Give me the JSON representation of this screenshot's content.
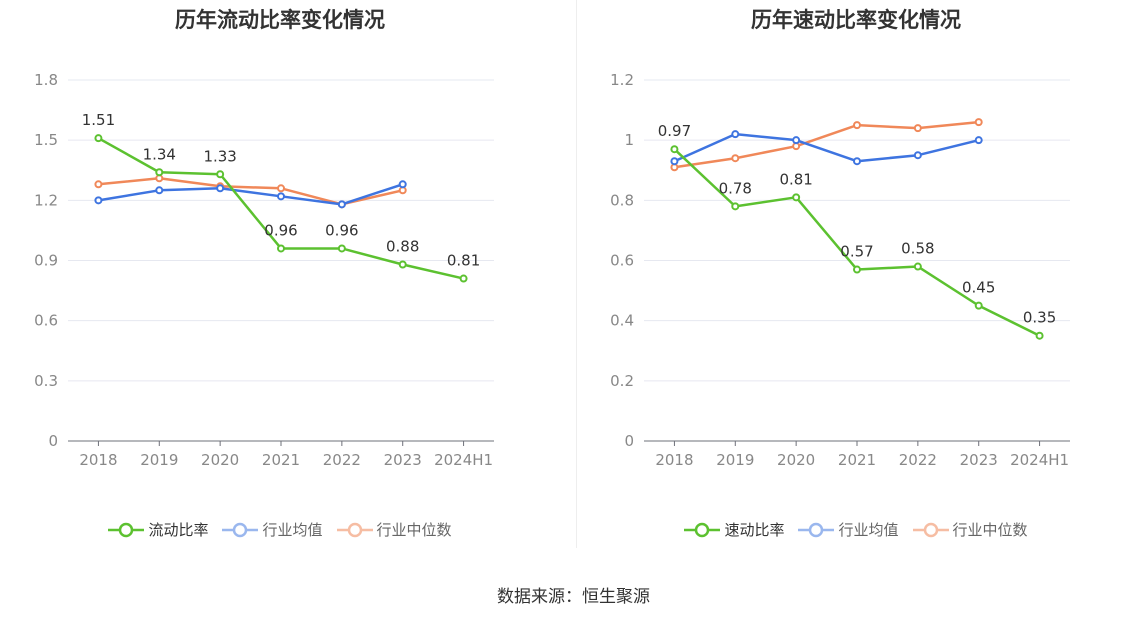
{
  "source_text": "数据来源：恒生聚源",
  "colors": {
    "main": "#5cc130",
    "avg": "#3e74e0",
    "median": "#f08859",
    "grid": "#e6e8f0",
    "axis": "#6e7079",
    "tick": "#888888"
  },
  "chart_data": [
    {
      "type": "line",
      "title": "历年流动比率变化情况",
      "categories": [
        "2018",
        "2019",
        "2020",
        "2021",
        "2022",
        "2023",
        "2024H1"
      ],
      "ylim": [
        0,
        1.8
      ],
      "yticks": [
        "0",
        "0.3",
        "0.6",
        "0.9",
        "1.2",
        "1.5",
        "1.8"
      ],
      "ytick_values": [
        0,
        0.3,
        0.6,
        0.9,
        1.2,
        1.5,
        1.8
      ],
      "grid": true,
      "legend_position": "bottom",
      "series": [
        {
          "name": "流动比率",
          "color": "#5cc130",
          "labels": true,
          "values": [
            1.51,
            1.34,
            1.33,
            0.96,
            0.96,
            0.88,
            0.81
          ],
          "value_labels": [
            "1.51",
            "1.34",
            "1.33",
            "0.96",
            "0.96",
            "0.88",
            "0.81"
          ]
        },
        {
          "name": "行业均值",
          "color": "#3e74e0",
          "labels": false,
          "values": [
            1.2,
            1.25,
            1.26,
            1.22,
            1.18,
            1.28,
            null
          ]
        },
        {
          "name": "行业中位数",
          "color": "#f08859",
          "labels": false,
          "values": [
            1.28,
            1.31,
            1.27,
            1.26,
            1.18,
            1.25,
            null
          ]
        }
      ]
    },
    {
      "type": "line",
      "title": "历年速动比率变化情况",
      "categories": [
        "2018",
        "2019",
        "2020",
        "2021",
        "2022",
        "2023",
        "2024H1"
      ],
      "ylim": [
        0,
        1.2
      ],
      "yticks": [
        "0",
        "0.2",
        "0.4",
        "0.6",
        "0.8",
        "1",
        "1.2"
      ],
      "ytick_values": [
        0,
        0.2,
        0.4,
        0.6,
        0.8,
        1.0,
        1.2
      ],
      "grid": true,
      "legend_position": "bottom",
      "series": [
        {
          "name": "速动比率",
          "color": "#5cc130",
          "labels": true,
          "values": [
            0.97,
            0.78,
            0.81,
            0.57,
            0.58,
            0.45,
            0.35
          ],
          "value_labels": [
            "0.97",
            "0.78",
            "0.81",
            "0.57",
            "0.58",
            "0.45",
            "0.35"
          ]
        },
        {
          "name": "行业均值",
          "color": "#3e74e0",
          "labels": false,
          "values": [
            0.93,
            1.02,
            1.0,
            0.93,
            0.95,
            1.0,
            null
          ]
        },
        {
          "name": "行业中位数",
          "color": "#f08859",
          "labels": false,
          "values": [
            0.91,
            0.94,
            0.98,
            1.05,
            1.04,
            1.06,
            null
          ]
        }
      ]
    }
  ]
}
